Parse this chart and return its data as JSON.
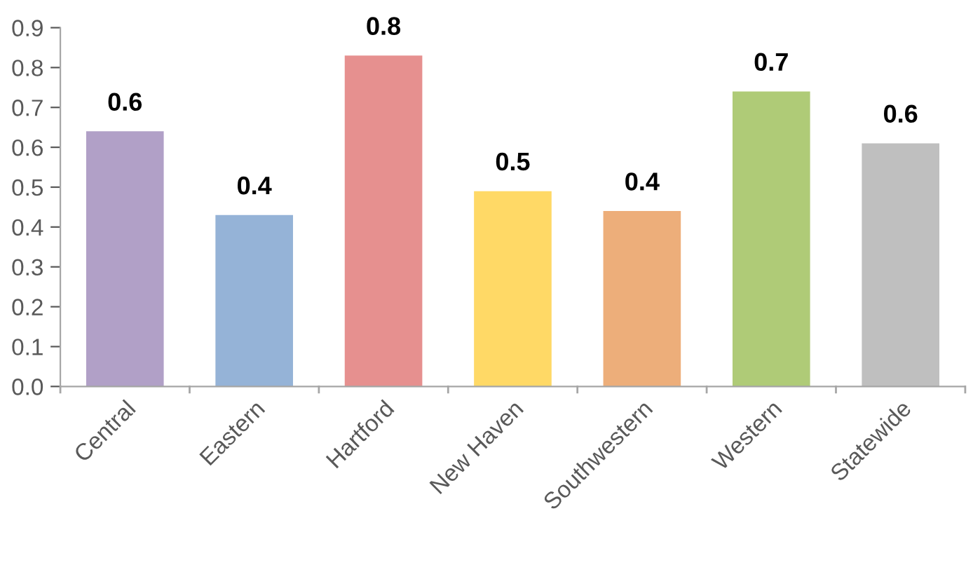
{
  "chart_data": {
    "type": "bar",
    "categories": [
      "Central",
      "Eastern",
      "Hartford",
      "New Haven",
      "Southwestern",
      "Western",
      "Statewide"
    ],
    "values": [
      0.64,
      0.43,
      0.83,
      0.49,
      0.44,
      0.74,
      0.61
    ],
    "colors": [
      "#b1a0c7",
      "#95b3d7",
      "#e6908f",
      "#ffd966",
      "#edae7a",
      "#afcb77",
      "#bfbfbf"
    ],
    "value_labels": [
      "0.6",
      "0.4",
      "0.8",
      "0.5",
      "0.4",
      "0.7",
      "0.6"
    ],
    "ylim": [
      0,
      0.9
    ],
    "yticks": [
      {
        "value": 0,
        "label": "0.0"
      },
      0.1,
      0.2,
      0.3,
      0.4,
      0.5,
      0.6,
      0.7,
      0.8,
      0.9
    ],
    "grid": false
  }
}
